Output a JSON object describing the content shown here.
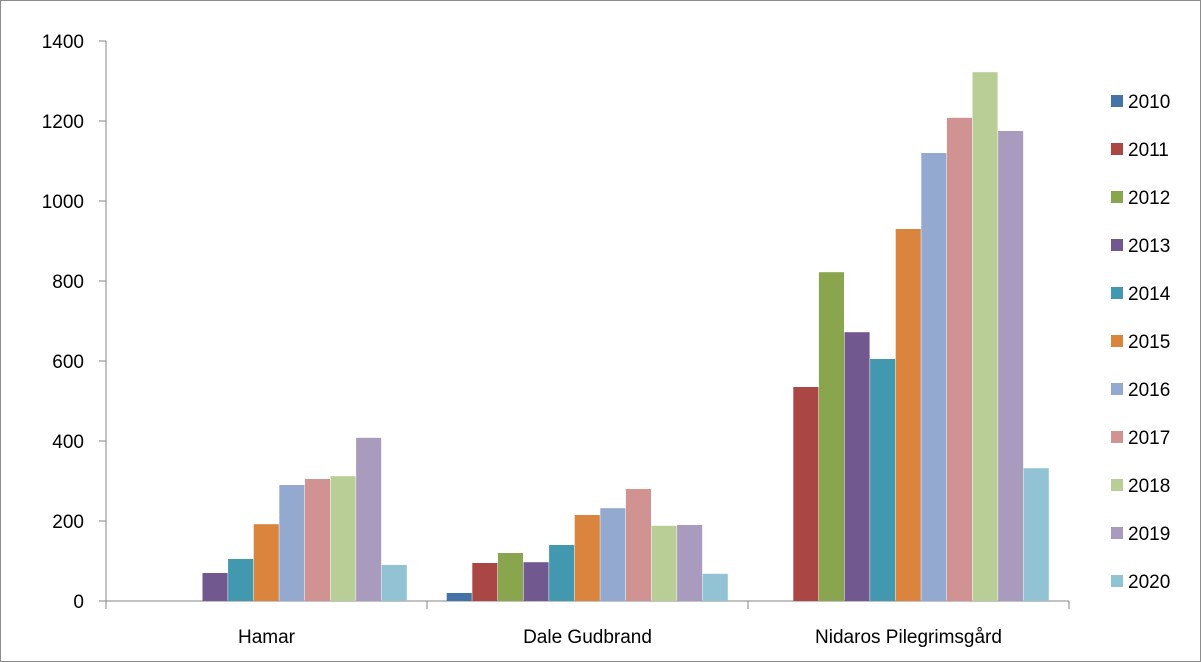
{
  "chart_data": {
    "type": "bar",
    "title": "",
    "xlabel": "",
    "ylabel": "",
    "categories": [
      "Hamar",
      "Dale Gudbrand",
      "Nidaros Pilegrimsgård"
    ],
    "ylim": [
      0,
      1400
    ],
    "yticks": [
      "0",
      "200",
      "400",
      "600",
      "800",
      "1000",
      "1200",
      "1400"
    ],
    "grid": false,
    "legend_position": "right",
    "series": [
      {
        "name": "2010",
        "color": "#4572A7",
        "values": [
          0,
          20,
          0
        ]
      },
      {
        "name": "2011",
        "color": "#AA4643",
        "values": [
          0,
          95,
          535
        ]
      },
      {
        "name": "2012",
        "color": "#89A54E",
        "values": [
          0,
          120,
          822
        ]
      },
      {
        "name": "2013",
        "color": "#71588F",
        "values": [
          70,
          97,
          672
        ]
      },
      {
        "name": "2014",
        "color": "#4198AF",
        "values": [
          105,
          140,
          605
        ]
      },
      {
        "name": "2015",
        "color": "#DB843D",
        "values": [
          192,
          215,
          930
        ]
      },
      {
        "name": "2016",
        "color": "#93A9CF",
        "values": [
          290,
          232,
          1120
        ]
      },
      {
        "name": "2017",
        "color": "#D19392",
        "values": [
          305,
          280,
          1208
        ]
      },
      {
        "name": "2018",
        "color": "#B9CD96",
        "values": [
          312,
          188,
          1322
        ]
      },
      {
        "name": "2019",
        "color": "#A99BBD",
        "values": [
          408,
          190,
          1175
        ]
      },
      {
        "name": "2020",
        "color": "#92C3D4",
        "values": [
          90,
          68,
          332
        ]
      }
    ]
  }
}
